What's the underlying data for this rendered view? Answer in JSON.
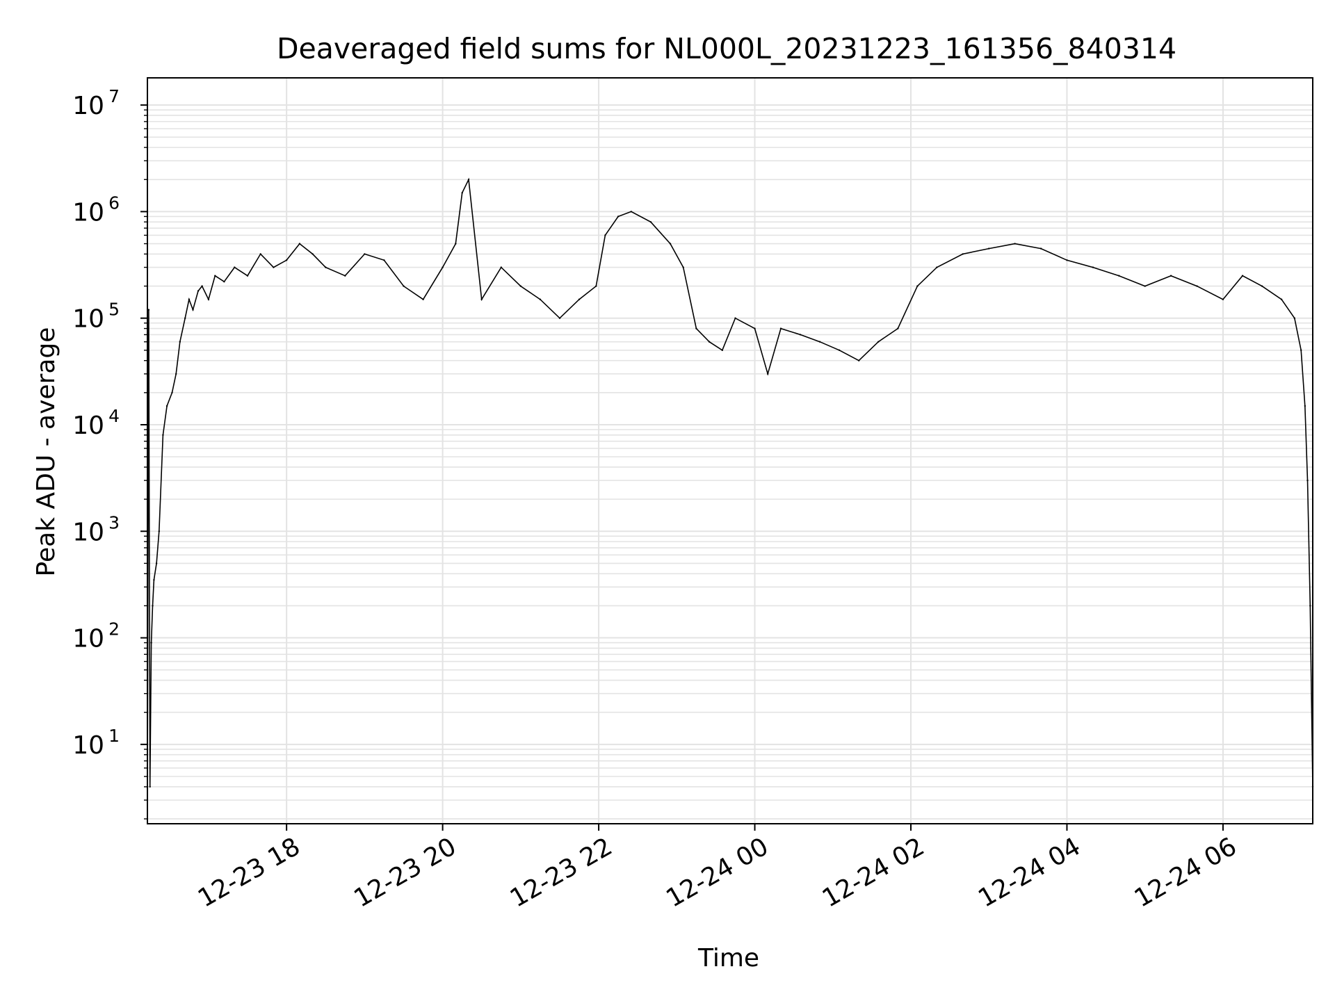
{
  "chart_data": {
    "type": "line",
    "title": "Deaveraged field sums for NL000L_20231223_161356_840314",
    "xlabel": "Time",
    "ylabel": "Peak ADU - average",
    "yscale": "log",
    "ylim": [
      1.8,
      18000000
    ],
    "xlim": [
      "2023-12-23T16:13",
      "2023-12-24T07:09"
    ],
    "grid": true,
    "x_ticks": [
      {
        "value": "2023-12-23T18:00",
        "label": "12-23 18"
      },
      {
        "value": "2023-12-23T20:00",
        "label": "12-23 20"
      },
      {
        "value": "2023-12-23T22:00",
        "label": "12-23 22"
      },
      {
        "value": "2023-12-24T00:00",
        "label": "12-24 00"
      },
      {
        "value": "2023-12-24T02:00",
        "label": "12-24 02"
      },
      {
        "value": "2023-12-24T04:00",
        "label": "12-24 04"
      },
      {
        "value": "2023-12-24T06:00",
        "label": "12-24 06"
      }
    ],
    "y_ticks": [
      {
        "value": 10,
        "base": "10",
        "exp": "1"
      },
      {
        "value": 100,
        "base": "10",
        "exp": "2"
      },
      {
        "value": 1000,
        "base": "10",
        "exp": "3"
      },
      {
        "value": 10000,
        "base": "10",
        "exp": "4"
      },
      {
        "value": 100000,
        "base": "10",
        "exp": "5"
      },
      {
        "value": 1000000,
        "base": "10",
        "exp": "6"
      },
      {
        "value": 10000000,
        "base": "10",
        "exp": "7"
      }
    ],
    "series": [
      {
        "line_color": "#000000",
        "x": [
          "2023-12-23T16:13",
          "2023-12-23T16:14",
          "2023-12-23T16:15",
          "2023-12-23T16:16",
          "2023-12-23T16:17",
          "2023-12-23T16:18",
          "2023-12-23T16:20",
          "2023-12-23T16:22",
          "2023-12-23T16:25",
          "2023-12-23T16:28",
          "2023-12-23T16:32",
          "2023-12-23T16:35",
          "2023-12-23T16:38",
          "2023-12-23T16:42",
          "2023-12-23T16:45",
          "2023-12-23T16:48",
          "2023-12-23T16:52",
          "2023-12-23T16:55",
          "2023-12-23T17:00",
          "2023-12-23T17:05",
          "2023-12-23T17:12",
          "2023-12-23T17:20",
          "2023-12-23T17:30",
          "2023-12-23T17:40",
          "2023-12-23T17:50",
          "2023-12-23T18:00",
          "2023-12-23T18:10",
          "2023-12-23T18:20",
          "2023-12-23T18:30",
          "2023-12-23T18:45",
          "2023-12-23T19:00",
          "2023-12-23T19:15",
          "2023-12-23T19:30",
          "2023-12-23T19:45",
          "2023-12-23T20:00",
          "2023-12-23T20:10",
          "2023-12-23T20:15",
          "2023-12-23T20:20",
          "2023-12-23T20:30",
          "2023-12-23T20:45",
          "2023-12-23T21:00",
          "2023-12-23T21:15",
          "2023-12-23T21:30",
          "2023-12-23T21:45",
          "2023-12-23T21:58",
          "2023-12-23T22:05",
          "2023-12-23T22:15",
          "2023-12-23T22:25",
          "2023-12-23T22:40",
          "2023-12-23T22:55",
          "2023-12-23T23:05",
          "2023-12-23T23:15",
          "2023-12-23T23:25",
          "2023-12-23T23:35",
          "2023-12-23T23:45",
          "2023-12-24T00:00",
          "2023-12-24T00:10",
          "2023-12-24T00:20",
          "2023-12-24T00:35",
          "2023-12-24T00:50",
          "2023-12-24T01:05",
          "2023-12-24T01:20",
          "2023-12-24T01:35",
          "2023-12-24T01:50",
          "2023-12-24T02:05",
          "2023-12-24T02:20",
          "2023-12-24T02:40",
          "2023-12-24T03:00",
          "2023-12-24T03:20",
          "2023-12-24T03:40",
          "2023-12-24T04:00",
          "2023-12-24T04:20",
          "2023-12-24T04:40",
          "2023-12-24T05:00",
          "2023-12-24T05:20",
          "2023-12-24T05:40",
          "2023-12-24T06:00",
          "2023-12-24T06:15",
          "2023-12-24T06:30",
          "2023-12-24T06:45",
          "2023-12-24T06:55",
          "2023-12-24T07:00",
          "2023-12-24T07:03",
          "2023-12-24T07:05",
          "2023-12-24T07:07",
          "2023-12-24T07:09"
        ],
        "y": [
          4,
          120000,
          4,
          90,
          200,
          350,
          500,
          1000,
          8000,
          15000,
          20000,
          30000,
          60000,
          100000,
          150000,
          120000,
          180000,
          200000,
          150000,
          250000,
          220000,
          300000,
          250000,
          400000,
          300000,
          350000,
          500000,
          400000,
          300000,
          250000,
          400000,
          350000,
          200000,
          150000,
          300000,
          500000,
          1500000,
          2000000,
          150000,
          300000,
          200000,
          150000,
          100000,
          150000,
          200000,
          600000,
          900000,
          1000000,
          800000,
          500000,
          300000,
          80000,
          60000,
          50000,
          100000,
          80000,
          30000,
          80000,
          70000,
          60000,
          50000,
          40000,
          60000,
          80000,
          200000,
          300000,
          400000,
          450000,
          500000,
          450000,
          350000,
          300000,
          250000,
          200000,
          250000,
          200000,
          150000,
          250000,
          200000,
          150000,
          100000,
          50000,
          15000,
          3000,
          200,
          4
        ]
      }
    ]
  }
}
